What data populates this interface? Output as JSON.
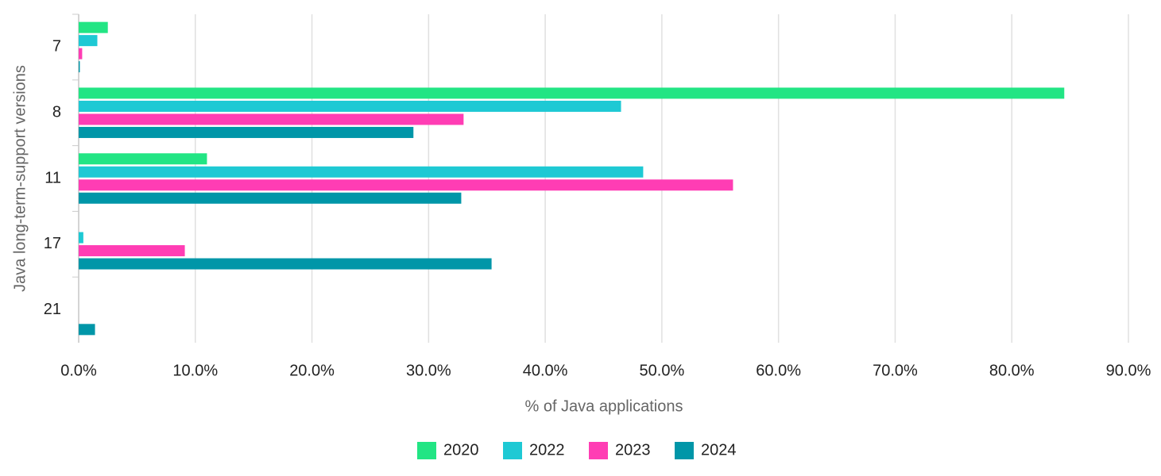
{
  "chart_data": {
    "type": "bar",
    "orientation": "horizontal",
    "x_label": "% of Java applications",
    "y_label": "Java long-term-support versions",
    "categories": [
      "7",
      "8",
      "11",
      "17",
      "21"
    ],
    "series": [
      {
        "name": "2020",
        "color": "#22e584",
        "values": [
          2.5,
          84.5,
          11.0,
          0,
          0
        ]
      },
      {
        "name": "2022",
        "color": "#1ec9d4",
        "values": [
          1.6,
          46.5,
          48.4,
          0.4,
          0
        ]
      },
      {
        "name": "2023",
        "color": "#ff3db4",
        "values": [
          0.3,
          33.0,
          56.1,
          9.1,
          0
        ]
      },
      {
        "name": "2024",
        "color": "#0096a8",
        "values": [
          0.1,
          28.7,
          32.8,
          35.4,
          1.4
        ]
      }
    ],
    "xlim": [
      0,
      90
    ],
    "xticks": [
      {
        "value": 0,
        "label": "0.0%"
      },
      {
        "value": 10,
        "label": "10.0%"
      },
      {
        "value": 20,
        "label": "20.0%"
      },
      {
        "value": 30,
        "label": "30.0%"
      },
      {
        "value": 40,
        "label": "40.0%"
      },
      {
        "value": 50,
        "label": "50.0%"
      },
      {
        "value": 60,
        "label": "60.0%"
      },
      {
        "value": 70,
        "label": "70.0%"
      },
      {
        "value": 80,
        "label": "80.0%"
      },
      {
        "value": 90,
        "label": "90.0%"
      }
    ],
    "grid": true,
    "legend": "bottom"
  }
}
